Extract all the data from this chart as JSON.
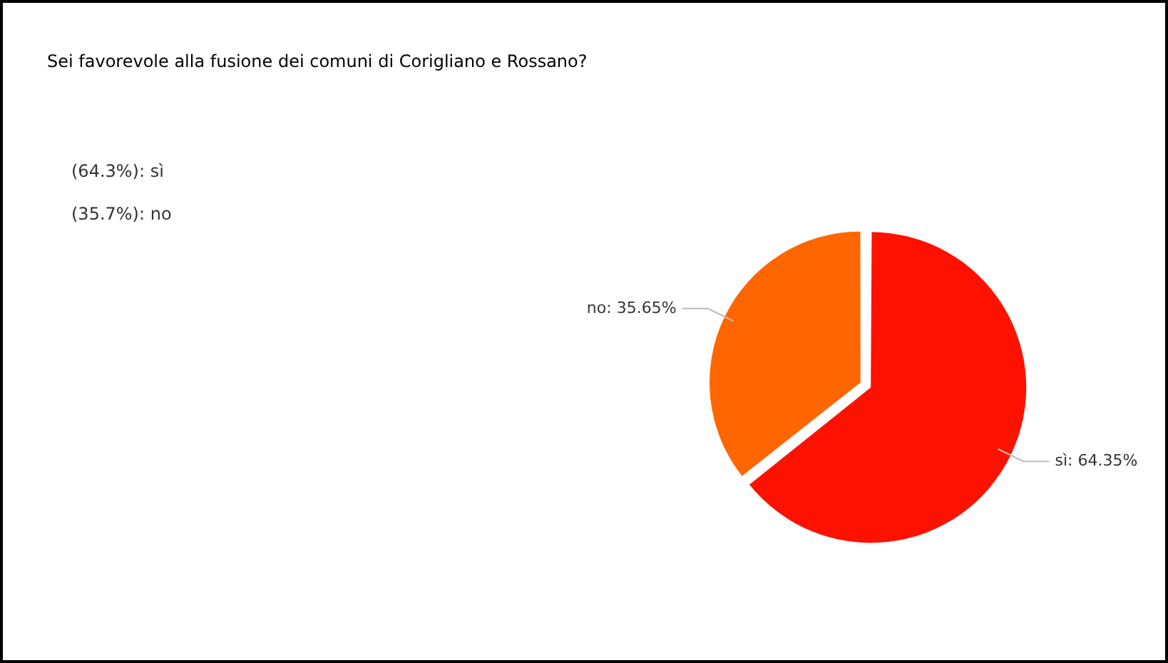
{
  "chart_data": {
    "type": "pie",
    "title": "Sei favorevole alla fusione dei comuni di Corigliano e Rossano?",
    "categories": [
      "sì",
      "no"
    ],
    "values": [
      64.35,
      35.65
    ],
    "colors": [
      "#ff1100",
      "#ff6600"
    ],
    "value_labels": [
      "64.35%",
      "35.65%"
    ],
    "annotations": [
      "(64.3%): sì",
      "(35.7%): no"
    ],
    "legend": false
  }
}
